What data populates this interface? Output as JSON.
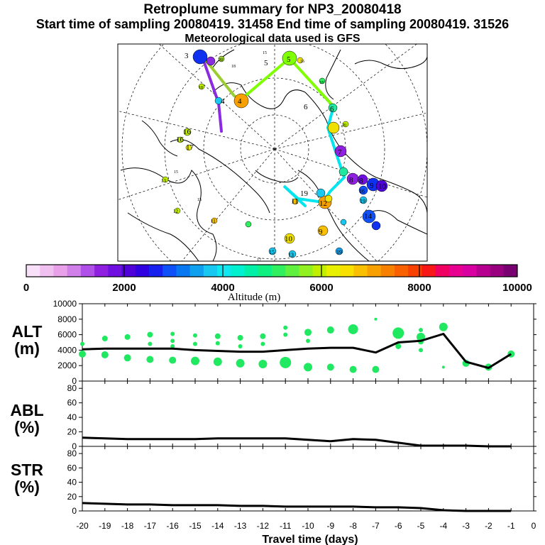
{
  "header": {
    "title": "Retroplume summary for NP3_20080418",
    "sampling": "Start time of sampling 20080419. 31458     End time of sampling 20080419. 31526",
    "met_note": "Meteorological data used is GFS"
  },
  "map": {
    "description_free": true,
    "labels": [
      "3",
      "20",
      "15",
      "5",
      "5",
      "16",
      "4",
      "18",
      "18",
      "4",
      "6",
      "6",
      "20",
      "16",
      "17",
      "16",
      "7",
      "8",
      "8",
      "9",
      "10",
      "16",
      "15",
      "19",
      "14",
      "13",
      "15",
      "11",
      "12",
      "19",
      "11",
      "12",
      "10",
      "9",
      "13",
      "15",
      "17",
      "18",
      "19"
    ],
    "trajectory_colors": {
      "seg1": "#8a2be2",
      "seg2": "#32cd32",
      "seg3": "#7fff00",
      "seg4": "#00e5ee",
      "seg5": "#00e5ee"
    }
  },
  "colorbar": {
    "ticks": [
      "0",
      "2000",
      "4000",
      "6000",
      "8000",
      "10000"
    ],
    "label": "Altitude (m)",
    "colors": [
      "#f8e0f8",
      "#f0c0f0",
      "#e8a0e8",
      "#d080e8",
      "#b050e8",
      "#9020e0",
      "#7010e0",
      "#5000d8",
      "#3000e0",
      "#1820f0",
      "#1050f8",
      "#0878f0",
      "#10a0f0",
      "#18c8f0",
      "#10e8f0",
      "#00f0d0",
      "#00f0a8",
      "#10f080",
      "#30f060",
      "#60f040",
      "#90f020",
      "#c0f000",
      "#e8f000",
      "#f8e000",
      "#f8c000",
      "#f8a000",
      "#f88000",
      "#f86000",
      "#f84000",
      "#f81818",
      "#f00060",
      "#e80090",
      "#d800a0",
      "#b80090",
      "#980080",
      "#780070"
    ]
  },
  "chart_data": {
    "type": "line",
    "x": [
      -20,
      -19,
      -18,
      -17,
      -16,
      -15,
      -14,
      -13,
      -12,
      -11,
      -10,
      -9,
      -8,
      -7,
      -6,
      -5,
      -4,
      -3,
      -2,
      -1
    ],
    "xlabel": "Travel time (days)",
    "xlim": [
      -20,
      0
    ],
    "xtick_labels": [
      "-20",
      "-19",
      "-18",
      "-17",
      "-16",
      "-15",
      "-14",
      "-13",
      "-12",
      "-11",
      "-10",
      "-9",
      "-8",
      "-7",
      "-6",
      "-5",
      "-4",
      "-3",
      "-2",
      "-1",
      "0"
    ],
    "panels": [
      {
        "id": "alt",
        "ylabel": "ALT\n(m)",
        "ylabel_lines": [
          "ALT",
          "(m)"
        ],
        "ylim": [
          0,
          10000
        ],
        "ytick_labels": [
          "0",
          "2000",
          "4000",
          "6000",
          "8000",
          "10000"
        ],
        "line": [
          4100,
          4200,
          4200,
          4200,
          4200,
          4000,
          3900,
          3800,
          3800,
          4000,
          4200,
          4300,
          4300,
          3700,
          5000,
          5200,
          6100,
          2500,
          1700,
          3500
        ],
        "cluster_color": "#20e860",
        "clusters": [
          {
            "x": -20,
            "y": 4800,
            "s": 3
          },
          {
            "x": -20,
            "y": 3500,
            "s": 5
          },
          {
            "x": -19,
            "y": 5500,
            "s": 4
          },
          {
            "x": -19,
            "y": 3400,
            "s": 5
          },
          {
            "x": -18,
            "y": 5700,
            "s": 4
          },
          {
            "x": -18,
            "y": 3000,
            "s": 5
          },
          {
            "x": -17,
            "y": 6000,
            "s": 4
          },
          {
            "x": -17,
            "y": 4800,
            "s": 3
          },
          {
            "x": -17,
            "y": 2800,
            "s": 5
          },
          {
            "x": -16,
            "y": 6100,
            "s": 3
          },
          {
            "x": -16,
            "y": 5200,
            "s": 3
          },
          {
            "x": -16,
            "y": 4500,
            "s": 3
          },
          {
            "x": -16,
            "y": 2700,
            "s": 5
          },
          {
            "x": -15,
            "y": 5900,
            "s": 3
          },
          {
            "x": -15,
            "y": 4800,
            "s": 3
          },
          {
            "x": -15,
            "y": 2600,
            "s": 6
          },
          {
            "x": -14,
            "y": 5800,
            "s": 4
          },
          {
            "x": -14,
            "y": 4900,
            "s": 3
          },
          {
            "x": -14,
            "y": 2500,
            "s": 6
          },
          {
            "x": -13,
            "y": 5600,
            "s": 4
          },
          {
            "x": -13,
            "y": 4500,
            "s": 3
          },
          {
            "x": -13,
            "y": 2300,
            "s": 6
          },
          {
            "x": -12,
            "y": 5800,
            "s": 4
          },
          {
            "x": -12,
            "y": 4800,
            "s": 3
          },
          {
            "x": -12,
            "y": 2200,
            "s": 6
          },
          {
            "x": -11,
            "y": 6900,
            "s": 3
          },
          {
            "x": -11,
            "y": 6000,
            "s": 3
          },
          {
            "x": -11,
            "y": 2400,
            "s": 8
          },
          {
            "x": -10,
            "y": 6300,
            "s": 5
          },
          {
            "x": -10,
            "y": 5200,
            "s": 3
          },
          {
            "x": -10,
            "y": 1800,
            "s": 6
          },
          {
            "x": -9,
            "y": 6600,
            "s": 5
          },
          {
            "x": -9,
            "y": 1800,
            "s": 5
          },
          {
            "x": -8,
            "y": 6700,
            "s": 7
          },
          {
            "x": -8,
            "y": 1500,
            "s": 5
          },
          {
            "x": -7,
            "y": 8000,
            "s": 2
          },
          {
            "x": -7,
            "y": 1500,
            "s": 5
          },
          {
            "x": -6,
            "y": 6200,
            "s": 8
          },
          {
            "x": -6,
            "y": 4500,
            "s": 4
          },
          {
            "x": -5,
            "y": 6600,
            "s": 3
          },
          {
            "x": -5,
            "y": 5700,
            "s": 6
          },
          {
            "x": -5,
            "y": 5100,
            "s": 4
          },
          {
            "x": -5,
            "y": 4000,
            "s": 3
          },
          {
            "x": -4,
            "y": 7000,
            "s": 6
          },
          {
            "x": -4,
            "y": 1800,
            "s": 2
          },
          {
            "x": -3,
            "y": 2300,
            "s": 5
          },
          {
            "x": -2,
            "y": 1800,
            "s": 5
          },
          {
            "x": -1,
            "y": 3500,
            "s": 5
          }
        ]
      },
      {
        "id": "abl",
        "ylabel": "ABL\n(%)",
        "ylabel_lines": [
          "ABL",
          "(%)"
        ],
        "ylim": [
          0,
          90
        ],
        "ytick_labels": [
          "0",
          "20",
          "40",
          "60",
          "80"
        ],
        "line": [
          12,
          11,
          10,
          10,
          10,
          10,
          11,
          11,
          11,
          11,
          9,
          7,
          10,
          9,
          5,
          1,
          1,
          1,
          0,
          0
        ]
      },
      {
        "id": "str",
        "ylabel": "STR\n(%)",
        "ylabel_lines": [
          "STR",
          "(%)"
        ],
        "ylim": [
          0,
          90
        ],
        "ytick_labels": [
          "0",
          "20",
          "40",
          "60",
          "80"
        ],
        "line": [
          11,
          10,
          9,
          9,
          8,
          8,
          8,
          7,
          7,
          6,
          6,
          6,
          6,
          5,
          5,
          4,
          1,
          0,
          0,
          0
        ]
      }
    ]
  }
}
